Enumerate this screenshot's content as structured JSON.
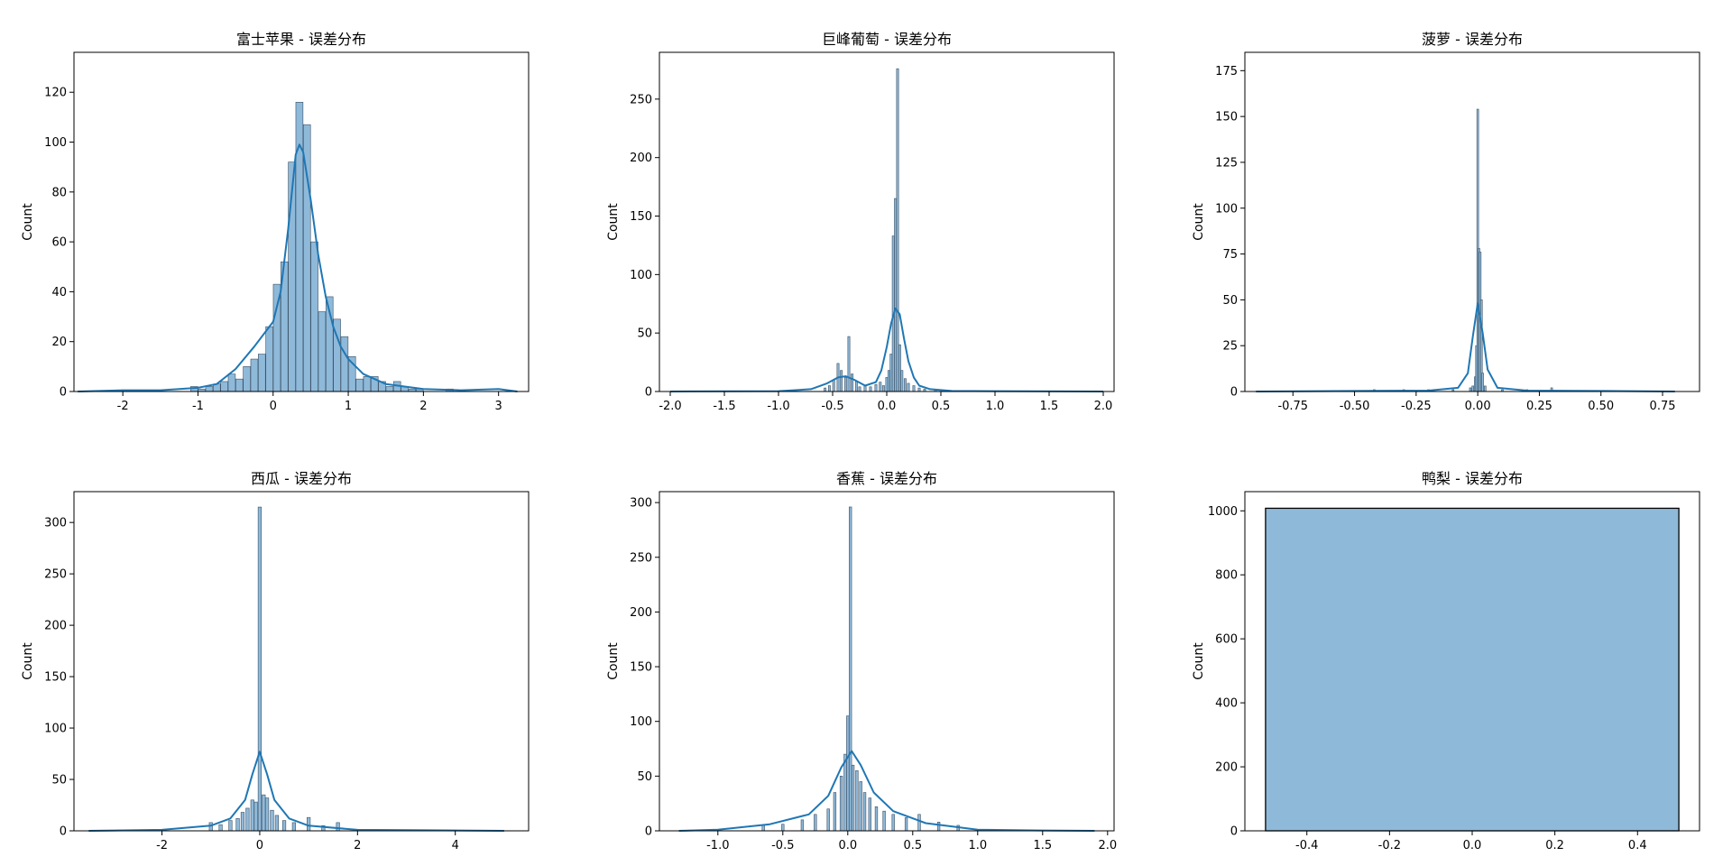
{
  "ylabel": "Count",
  "colors": {
    "bar_fill": "#8fb9d9",
    "bar_stroke": "#3a4f63",
    "kde": "#1f77b4",
    "axis": "#000000"
  },
  "chart_data": [
    {
      "type": "bar",
      "title": "富士苹果 - 误差分布",
      "ylabel": "Count",
      "xlim": [
        -2.65,
        3.4
      ],
      "ylim": [
        0,
        136
      ],
      "xticks": [
        -2,
        -1,
        0,
        1,
        2,
        3
      ],
      "xtick_labels": [
        "-2",
        "-1",
        "0",
        "1",
        "2",
        "3"
      ],
      "yticks": [
        0,
        20,
        40,
        60,
        80,
        100,
        120
      ],
      "ytick_labels": [
        "0",
        "20",
        "40",
        "60",
        "80",
        "100",
        "120"
      ],
      "x": [
        -1.05,
        -0.95,
        -0.85,
        -0.75,
        -0.65,
        -0.55,
        -0.45,
        -0.35,
        -0.25,
        -0.15,
        -0.05,
        0.05,
        0.15,
        0.25,
        0.35,
        0.45,
        0.55,
        0.65,
        0.75,
        0.85,
        0.95,
        1.05,
        1.15,
        1.25,
        1.35,
        1.45,
        1.55,
        1.65,
        1.75,
        1.85,
        1.95,
        2.35
      ],
      "values": [
        2,
        1,
        2,
        3,
        4,
        7,
        5,
        10,
        13,
        15,
        26,
        43,
        52,
        92,
        116,
        107,
        60,
        32,
        38,
        29,
        22,
        14,
        5,
        6,
        6,
        4,
        2,
        4,
        2,
        1,
        1,
        1
      ],
      "kde": {
        "x": [
          -2.6,
          -2.0,
          -1.5,
          -1.0,
          -0.75,
          -0.5,
          -0.25,
          0.0,
          0.1,
          0.2,
          0.3,
          0.35,
          0.4,
          0.5,
          0.6,
          0.7,
          0.8,
          0.9,
          1.0,
          1.2,
          1.5,
          2.0,
          2.5,
          3.0,
          3.25
        ],
        "y": [
          0,
          0.5,
          0.5,
          1.5,
          3,
          9,
          18,
          28,
          40,
          65,
          95,
          99,
          96,
          77,
          55,
          38,
          26,
          18,
          13,
          7,
          3,
          1,
          0.5,
          1,
          0
        ]
      }
    },
    {
      "type": "bar",
      "title": "巨峰葡萄 - 误差分布",
      "ylabel": "Count",
      "xlim": [
        -2.1,
        2.1
      ],
      "ylim": [
        0,
        290
      ],
      "xticks": [
        -2.0,
        -1.5,
        -1.0,
        -0.5,
        0.0,
        0.5,
        1.0,
        1.5,
        2.0
      ],
      "xtick_labels": [
        "-2.0",
        "-1.5",
        "-1.0",
        "-0.5",
        "0.0",
        "0.5",
        "1.0",
        "1.5",
        "2.0"
      ],
      "yticks": [
        0,
        50,
        100,
        150,
        200,
        250
      ],
      "ytick_labels": [
        "0",
        "50",
        "100",
        "150",
        "200",
        "250"
      ],
      "x": [
        -0.57,
        -0.53,
        -0.49,
        -0.45,
        -0.42,
        -0.38,
        -0.35,
        -0.32,
        -0.28,
        -0.25,
        -0.2,
        -0.15,
        -0.1,
        -0.06,
        -0.03,
        0.0,
        0.02,
        0.04,
        0.06,
        0.08,
        0.1,
        0.12,
        0.14,
        0.17,
        0.2,
        0.25,
        0.3,
        0.35,
        0.45,
        0.55
      ],
      "values": [
        3,
        5,
        10,
        24,
        18,
        12,
        47,
        15,
        9,
        4,
        5,
        4,
        6,
        8,
        5,
        12,
        18,
        32,
        133,
        165,
        276,
        40,
        18,
        11,
        7,
        5,
        3,
        2,
        2,
        1
      ],
      "kde": {
        "x": [
          -2.0,
          -1.0,
          -0.7,
          -0.55,
          -0.45,
          -0.38,
          -0.3,
          -0.2,
          -0.1,
          -0.05,
          0.0,
          0.04,
          0.08,
          0.12,
          0.16,
          0.2,
          0.25,
          0.3,
          0.4,
          0.6,
          1.0,
          2.0
        ],
        "y": [
          0,
          0.3,
          2,
          7,
          12,
          13,
          10,
          5,
          8,
          18,
          38,
          58,
          71,
          66,
          45,
          26,
          12,
          5,
          2,
          0.5,
          0.3,
          0
        ]
      }
    },
    {
      "type": "bar",
      "title": "菠萝 - 误差分布",
      "ylabel": "Count",
      "xlim": [
        -0.945,
        0.9
      ],
      "ylim": [
        0,
        185
      ],
      "xticks": [
        -0.75,
        -0.5,
        -0.25,
        0.0,
        0.25,
        0.5,
        0.75
      ],
      "xtick_labels": [
        "-0.75",
        "-0.50",
        "-0.25",
        "0.00",
        "0.25",
        "0.50",
        "0.75"
      ],
      "yticks": [
        0,
        25,
        50,
        75,
        100,
        125,
        150,
        175
      ],
      "ytick_labels": [
        "0",
        "25",
        "50",
        "75",
        "100",
        "125",
        "150",
        "175"
      ],
      "x": [
        -0.42,
        -0.3,
        -0.2,
        -0.1,
        -0.03,
        -0.02,
        -0.01,
        -0.005,
        0.0,
        0.005,
        0.01,
        0.015,
        0.02,
        0.03,
        0.1,
        0.2,
        0.3
      ],
      "values": [
        1,
        1,
        1,
        1,
        2,
        3,
        8,
        25,
        154,
        78,
        76,
        50,
        10,
        3,
        1,
        1,
        2
      ],
      "kde": {
        "x": [
          -0.9,
          -0.5,
          -0.2,
          -0.08,
          -0.04,
          -0.02,
          0.0,
          0.02,
          0.04,
          0.08,
          0.2,
          0.5,
          0.8
        ],
        "y": [
          0,
          0.3,
          0.5,
          2,
          10,
          30,
          48,
          32,
          12,
          2,
          0.5,
          0.3,
          0
        ]
      }
    },
    {
      "type": "bar",
      "title": "西瓜 - 误差分布",
      "ylabel": "Count",
      "xlim": [
        -3.8,
        5.5
      ],
      "ylim": [
        0,
        330
      ],
      "xticks": [
        -2,
        0,
        2,
        4
      ],
      "xtick_labels": [
        "-2",
        "0",
        "2",
        "4"
      ],
      "yticks": [
        0,
        50,
        100,
        150,
        200,
        250,
        300
      ],
      "ytick_labels": [
        "0",
        "50",
        "100",
        "150",
        "200",
        "250",
        "300"
      ],
      "x": [
        -1.0,
        -0.8,
        -0.6,
        -0.45,
        -0.35,
        -0.25,
        -0.15,
        -0.08,
        0.0,
        0.08,
        0.15,
        0.25,
        0.35,
        0.5,
        0.7,
        1.0,
        1.3,
        1.6
      ],
      "values": [
        8,
        6,
        10,
        12,
        18,
        22,
        30,
        28,
        315,
        35,
        32,
        20,
        15,
        10,
        8,
        13,
        5,
        8
      ],
      "kde": {
        "x": [
          -3.5,
          -2.0,
          -1.0,
          -0.6,
          -0.3,
          -0.15,
          0.0,
          0.15,
          0.3,
          0.6,
          1.0,
          2.0,
          3.5,
          5.0
        ],
        "y": [
          0,
          1,
          5,
          12,
          30,
          55,
          77,
          55,
          30,
          12,
          5,
          1,
          0.5,
          0
        ]
      }
    },
    {
      "type": "bar",
      "title": "香蕉 - 误差分布",
      "ylabel": "Count",
      "xlim": [
        -1.45,
        2.05
      ],
      "ylim": [
        0,
        310
      ],
      "xticks": [
        -1.0,
        -0.5,
        0.0,
        0.5,
        1.0,
        1.5,
        2.0
      ],
      "xtick_labels": [
        "-1.0",
        "-0.5",
        "0.0",
        "0.5",
        "1.0",
        "1.5",
        "2.0"
      ],
      "yticks": [
        0,
        50,
        100,
        150,
        200,
        250,
        300
      ],
      "ytick_labels": [
        "0",
        "50",
        "100",
        "150",
        "200",
        "250",
        "300"
      ],
      "x": [
        -0.65,
        -0.5,
        -0.35,
        -0.25,
        -0.15,
        -0.1,
        -0.05,
        -0.02,
        0.0,
        0.02,
        0.04,
        0.07,
        0.1,
        0.13,
        0.17,
        0.22,
        0.28,
        0.35,
        0.45,
        0.55,
        0.7,
        0.85
      ],
      "values": [
        5,
        6,
        10,
        15,
        20,
        35,
        50,
        70,
        105,
        296,
        60,
        55,
        45,
        35,
        30,
        22,
        18,
        15,
        12,
        15,
        8,
        5
      ],
      "kde": {
        "x": [
          -1.3,
          -1.0,
          -0.6,
          -0.3,
          -0.15,
          -0.05,
          0.03,
          0.1,
          0.2,
          0.35,
          0.6,
          1.0,
          1.5,
          1.9
        ],
        "y": [
          0,
          1,
          6,
          15,
          32,
          58,
          73,
          60,
          35,
          18,
          7,
          1,
          0.3,
          0
        ]
      }
    },
    {
      "type": "bar",
      "title": "鸭梨 - 误差分布",
      "ylabel": "Count",
      "xlim": [
        -0.55,
        0.55
      ],
      "ylim": [
        0,
        1060
      ],
      "xticks": [
        -0.4,
        -0.2,
        0.0,
        0.2,
        0.4
      ],
      "xtick_labels": [
        "-0.4",
        "-0.2",
        "0.0",
        "0.2",
        "0.4"
      ],
      "yticks": [
        0,
        200,
        400,
        600,
        800,
        1000
      ],
      "ytick_labels": [
        "0",
        "200",
        "400",
        "600",
        "800",
        "1000"
      ],
      "bins": [
        {
          "x0": -0.5,
          "x1": 0.5,
          "value": 1008
        }
      ]
    }
  ]
}
